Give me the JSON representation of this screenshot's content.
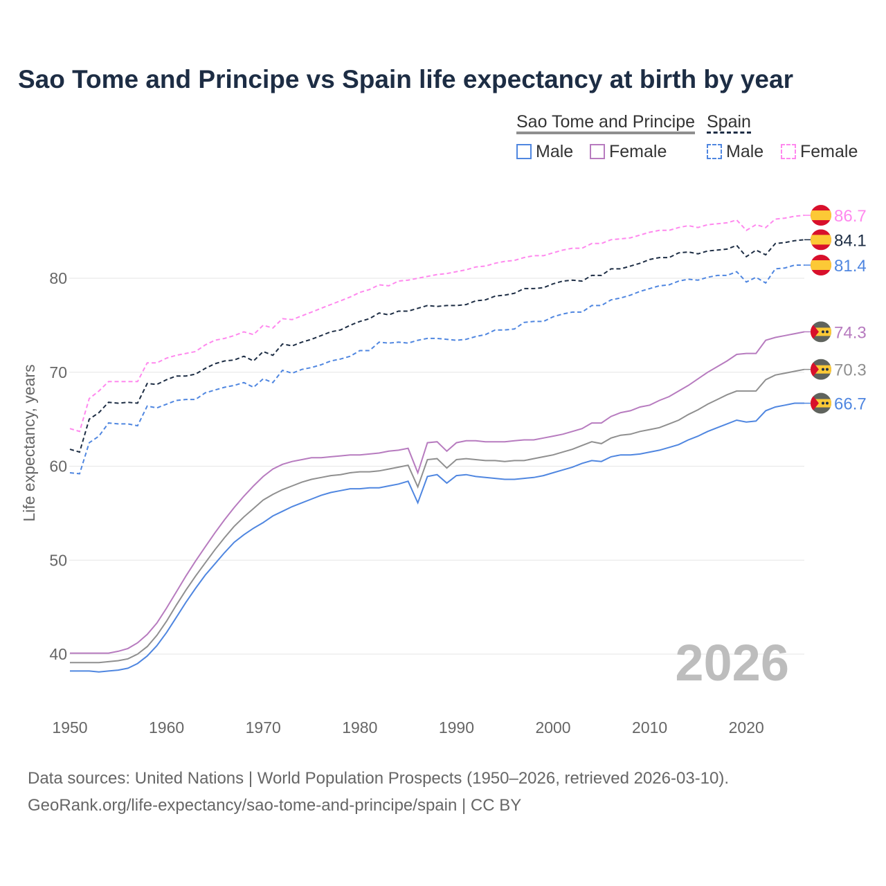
{
  "chart_data": {
    "type": "line",
    "title": "Sao Tome and Principe vs Spain life expectancy at birth by year",
    "ylabel": "Life expectancy, years",
    "xlabel": "",
    "xlim": [
      1950,
      2026
    ],
    "ylim": [
      35,
      88
    ],
    "yticks": [
      40,
      50,
      60,
      70,
      80
    ],
    "xticks": [
      1950,
      1960,
      1970,
      1980,
      1990,
      2000,
      2010,
      2020
    ],
    "grid": true,
    "year_watermark": "2026",
    "legend": {
      "group1": "Sao Tome and Principe",
      "group2": "Spain",
      "male": "Male",
      "female": "Female"
    },
    "x_start": 1950,
    "series": [
      {
        "name": "Spain Female",
        "country": "Spain",
        "color": "#ff88ee",
        "dashed": true,
        "end_label": "86.7",
        "values": [
          64.0,
          63.7,
          67.2,
          68.0,
          69.0,
          69.0,
          69.0,
          69.0,
          71.0,
          71.0,
          71.5,
          71.8,
          72.0,
          72.2,
          72.9,
          73.4,
          73.6,
          73.9,
          74.3,
          74.0,
          75.0,
          74.7,
          75.7,
          75.6,
          76.0,
          76.4,
          76.8,
          77.2,
          77.6,
          78.0,
          78.5,
          78.8,
          79.3,
          79.2,
          79.7,
          79.8,
          80.0,
          80.2,
          80.4,
          80.5,
          80.7,
          80.9,
          81.2,
          81.3,
          81.6,
          81.8,
          81.9,
          82.2,
          82.4,
          82.4,
          82.7,
          83.0,
          83.2,
          83.2,
          83.7,
          83.7,
          84.1,
          84.2,
          84.3,
          84.6,
          84.9,
          85.1,
          85.1,
          85.4,
          85.6,
          85.4,
          85.7,
          85.8,
          85.9,
          86.2,
          85.1,
          85.7,
          85.4,
          86.3,
          86.4,
          86.6,
          86.7
        ]
      },
      {
        "name": "Spain",
        "country": "Spain",
        "color": "#1d2d44",
        "dashed": true,
        "end_label": "84.1",
        "values": [
          61.8,
          61.5,
          65.0,
          65.7,
          66.8,
          66.7,
          66.8,
          66.7,
          68.8,
          68.7,
          69.2,
          69.6,
          69.6,
          69.8,
          70.4,
          70.9,
          71.2,
          71.3,
          71.7,
          71.2,
          72.2,
          71.8,
          73.0,
          72.8,
          73.2,
          73.5,
          73.9,
          74.3,
          74.5,
          75.0,
          75.4,
          75.7,
          76.3,
          76.1,
          76.5,
          76.5,
          76.8,
          77.1,
          77.0,
          77.1,
          77.1,
          77.2,
          77.6,
          77.7,
          78.1,
          78.2,
          78.4,
          78.9,
          78.9,
          79.0,
          79.4,
          79.7,
          79.8,
          79.7,
          80.3,
          80.3,
          81.0,
          81.0,
          81.3,
          81.6,
          82.0,
          82.2,
          82.2,
          82.7,
          82.8,
          82.6,
          82.9,
          83.0,
          83.1,
          83.5,
          82.3,
          83.0,
          82.5,
          83.7,
          83.8,
          84.0,
          84.1
        ]
      },
      {
        "name": "Spain Male",
        "country": "Spain",
        "color": "#4f86e0",
        "dashed": true,
        "end_label": "81.4",
        "values": [
          59.3,
          59.2,
          62.5,
          63.2,
          64.6,
          64.5,
          64.5,
          64.3,
          66.4,
          66.2,
          66.6,
          67.0,
          67.1,
          67.1,
          67.8,
          68.1,
          68.4,
          68.6,
          68.9,
          68.4,
          69.3,
          68.9,
          70.2,
          69.9,
          70.3,
          70.5,
          70.8,
          71.2,
          71.4,
          71.7,
          72.3,
          72.3,
          73.2,
          73.1,
          73.2,
          73.1,
          73.4,
          73.6,
          73.6,
          73.5,
          73.4,
          73.5,
          73.8,
          74.0,
          74.5,
          74.5,
          74.6,
          75.3,
          75.4,
          75.4,
          75.9,
          76.2,
          76.4,
          76.4,
          77.1,
          77.1,
          77.7,
          77.9,
          78.2,
          78.6,
          78.9,
          79.2,
          79.3,
          79.7,
          79.9,
          79.8,
          80.1,
          80.3,
          80.3,
          80.7,
          79.6,
          80.1,
          79.5,
          81.0,
          81.1,
          81.4,
          81.4
        ]
      },
      {
        "name": "Sao Tome and Principe Female",
        "country": "Sao Tome and Principe",
        "color": "#b77bbf",
        "dashed": false,
        "end_label": "74.3",
        "values": [
          40.1,
          40.1,
          40.1,
          40.1,
          40.1,
          40.3,
          40.6,
          41.2,
          42.1,
          43.3,
          44.9,
          46.6,
          48.3,
          49.9,
          51.4,
          52.9,
          54.3,
          55.6,
          56.8,
          57.9,
          58.9,
          59.7,
          60.2,
          60.5,
          60.7,
          60.9,
          60.9,
          61.0,
          61.1,
          61.2,
          61.2,
          61.3,
          61.4,
          61.6,
          61.7,
          61.9,
          59.3,
          62.5,
          62.6,
          61.6,
          62.5,
          62.7,
          62.7,
          62.6,
          62.6,
          62.6,
          62.7,
          62.8,
          62.8,
          63.0,
          63.2,
          63.4,
          63.7,
          64.0,
          64.6,
          64.6,
          65.3,
          65.7,
          65.9,
          66.3,
          66.5,
          67.0,
          67.4,
          68.0,
          68.6,
          69.3,
          70.0,
          70.6,
          71.2,
          71.9,
          72.0,
          72.0,
          73.4,
          73.7,
          73.9,
          74.1,
          74.3
        ]
      },
      {
        "name": "Sao Tome and Principe",
        "country": "Sao Tome and Principe",
        "color": "#8f8f8f",
        "dashed": false,
        "end_label": "70.3",
        "values": [
          39.1,
          39.1,
          39.1,
          39.1,
          39.2,
          39.3,
          39.5,
          40.0,
          40.8,
          42.0,
          43.5,
          45.2,
          46.8,
          48.3,
          49.7,
          51.1,
          52.4,
          53.6,
          54.6,
          55.5,
          56.4,
          57.0,
          57.5,
          57.9,
          58.3,
          58.6,
          58.8,
          59.0,
          59.1,
          59.3,
          59.4,
          59.4,
          59.5,
          59.7,
          59.9,
          60.1,
          57.8,
          60.7,
          60.8,
          59.8,
          60.7,
          60.8,
          60.7,
          60.6,
          60.6,
          60.5,
          60.6,
          60.6,
          60.8,
          61.0,
          61.2,
          61.5,
          61.8,
          62.2,
          62.6,
          62.4,
          63.0,
          63.3,
          63.4,
          63.7,
          63.9,
          64.1,
          64.5,
          64.9,
          65.5,
          66.0,
          66.6,
          67.1,
          67.6,
          68.0,
          68.0,
          68.0,
          69.2,
          69.7,
          69.9,
          70.1,
          70.3
        ]
      },
      {
        "name": "Sao Tome and Principe Male",
        "country": "Sao Tome and Principe",
        "color": "#4f86e0",
        "dashed": false,
        "end_label": "66.7",
        "values": [
          38.2,
          38.2,
          38.2,
          38.1,
          38.2,
          38.3,
          38.5,
          39.0,
          39.8,
          40.9,
          42.3,
          43.9,
          45.5,
          47.0,
          48.4,
          49.6,
          50.8,
          51.9,
          52.7,
          53.4,
          54.0,
          54.7,
          55.2,
          55.7,
          56.1,
          56.5,
          56.9,
          57.2,
          57.4,
          57.6,
          57.6,
          57.7,
          57.7,
          57.9,
          58.1,
          58.4,
          56.1,
          58.9,
          59.1,
          58.2,
          59.0,
          59.1,
          58.9,
          58.8,
          58.7,
          58.6,
          58.6,
          58.7,
          58.8,
          59.0,
          59.3,
          59.6,
          59.9,
          60.3,
          60.6,
          60.5,
          61.0,
          61.2,
          61.2,
          61.3,
          61.5,
          61.7,
          62.0,
          62.3,
          62.8,
          63.2,
          63.7,
          64.1,
          64.5,
          64.9,
          64.7,
          64.8,
          65.9,
          66.3,
          66.5,
          66.7,
          66.7
        ]
      }
    ]
  },
  "footer": {
    "line1": "Data sources: United Nations | World Population Prospects (1950–2026, retrieved 2026-03-10).",
    "line2": "GeoRank.org/life-expectancy/sao-tome-and-principe/spain | CC BY"
  }
}
